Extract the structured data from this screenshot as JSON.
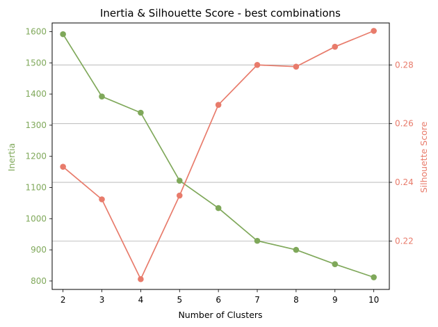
{
  "chart_data": {
    "type": "line",
    "title": "Inertia & Silhouette Score - best combinations",
    "xlabel": "Number of Clusters",
    "x": [
      2,
      3,
      4,
      5,
      6,
      7,
      8,
      9,
      10
    ],
    "xlim": [
      1.72,
      10.4
    ],
    "y_left": {
      "label": "Inertia",
      "color": "#7fa85a",
      "lim": [
        773,
        1628
      ],
      "ticks": [
        800,
        900,
        1000,
        1100,
        1200,
        1300,
        1400,
        1500,
        1600
      ]
    },
    "y_right": {
      "label": "Silhouette Score",
      "color": "#e87b6b",
      "lim": [
        0.2035,
        0.2943
      ],
      "ticks": [
        0.22,
        0.24,
        0.26,
        0.28
      ],
      "tick_labels": [
        "0.22",
        "0.24",
        "0.26",
        "0.28"
      ]
    },
    "series": [
      {
        "axis": "left",
        "color": "#7fa85a",
        "values": [
          1592,
          1392,
          1340,
          1122,
          1034,
          929,
          900,
          854,
          812
        ]
      },
      {
        "axis": "right",
        "color": "#e87b6b",
        "values": [
          0.2453,
          0.2342,
          0.207,
          0.2355,
          0.2664,
          0.28,
          0.2794,
          0.2862,
          0.2916
        ]
      }
    ],
    "grid": {
      "axis": "right-y",
      "color": "#b0b0b0"
    }
  }
}
